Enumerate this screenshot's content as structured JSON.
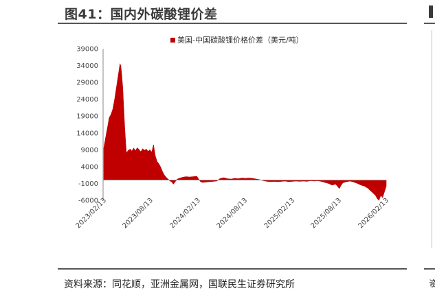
{
  "header": {
    "title": "图41：国内外碳酸锂价差"
  },
  "footer": {
    "source": "资料来源：同花顺，亚洲金属网，国联民生证券研究所"
  },
  "colors": {
    "series": "#c00000",
    "rule": "#555555"
  },
  "chart_data": {
    "type": "area",
    "legend": {
      "position": "top-center"
    },
    "series": [
      {
        "name": "美国-中国碳酸锂价格价差（美元/吨）",
        "color": "#c00000",
        "points": [
          [
            "2023-02-13",
            9500
          ],
          [
            "2023-02-20",
            12500
          ],
          [
            "2023-02-27",
            15500
          ],
          [
            "2023-03-06",
            18500
          ],
          [
            "2023-03-13",
            19500
          ],
          [
            "2023-03-20",
            21000
          ],
          [
            "2023-03-27",
            24000
          ],
          [
            "2023-04-03",
            27500
          ],
          [
            "2023-04-10",
            31000
          ],
          [
            "2023-04-14",
            33000
          ],
          [
            "2023-04-17",
            34500
          ],
          [
            "2023-04-20",
            34000
          ],
          [
            "2023-04-24",
            31000
          ],
          [
            "2023-04-28",
            27000
          ],
          [
            "2023-05-01",
            22000
          ],
          [
            "2023-05-05",
            16000
          ],
          [
            "2023-05-09",
            11000
          ],
          [
            "2023-05-12",
            8000
          ],
          [
            "2023-05-19",
            8800
          ],
          [
            "2023-05-26",
            9200
          ],
          [
            "2023-06-02",
            8600
          ],
          [
            "2023-06-09",
            9500
          ],
          [
            "2023-06-16",
            8700
          ],
          [
            "2023-06-23",
            9600
          ],
          [
            "2023-06-30",
            9000
          ],
          [
            "2023-07-07",
            8400
          ],
          [
            "2023-07-14",
            9300
          ],
          [
            "2023-07-21",
            8800
          ],
          [
            "2023-07-28",
            9200
          ],
          [
            "2023-08-04",
            8500
          ],
          [
            "2023-08-11",
            9000
          ],
          [
            "2023-08-18",
            8300
          ],
          [
            "2023-08-25",
            10500
          ],
          [
            "2023-09-01",
            7200
          ],
          [
            "2023-09-08",
            5500
          ],
          [
            "2023-09-15",
            4800
          ],
          [
            "2023-09-22",
            3800
          ],
          [
            "2023-09-29",
            2500
          ],
          [
            "2023-10-06",
            1500
          ],
          [
            "2023-10-13",
            800
          ],
          [
            "2023-10-20",
            300
          ],
          [
            "2023-10-27",
            -200
          ],
          [
            "2023-11-03",
            -500
          ],
          [
            "2023-11-10",
            -1200
          ],
          [
            "2023-11-17",
            -500
          ],
          [
            "2023-11-24",
            200
          ],
          [
            "2023-12-01",
            500
          ],
          [
            "2023-12-15",
            800
          ],
          [
            "2023-12-29",
            1000
          ],
          [
            "2024-01-12",
            900
          ],
          [
            "2024-01-26",
            1000
          ],
          [
            "2024-02-09",
            1100
          ],
          [
            "2024-02-16",
            300
          ],
          [
            "2024-02-23",
            -400
          ],
          [
            "2024-03-01",
            -700
          ],
          [
            "2024-03-15",
            -600
          ],
          [
            "2024-03-29",
            -500
          ],
          [
            "2024-04-12",
            -400
          ],
          [
            "2024-04-26",
            -300
          ],
          [
            "2024-05-10",
            500
          ],
          [
            "2024-05-24",
            700
          ],
          [
            "2024-06-07",
            400
          ],
          [
            "2024-06-21",
            300
          ],
          [
            "2024-07-05",
            500
          ],
          [
            "2024-07-19",
            400
          ],
          [
            "2024-08-02",
            600
          ],
          [
            "2024-08-16",
            500
          ],
          [
            "2024-08-30",
            600
          ],
          [
            "2024-09-13",
            500
          ],
          [
            "2024-09-27",
            300
          ],
          [
            "2024-10-11",
            100
          ],
          [
            "2024-10-25",
            -200
          ],
          [
            "2024-11-08",
            -400
          ],
          [
            "2024-11-22",
            -500
          ],
          [
            "2024-12-06",
            -400
          ],
          [
            "2024-12-20",
            -500
          ],
          [
            "2025-01-03",
            -400
          ],
          [
            "2025-01-17",
            -300
          ],
          [
            "2025-01-31",
            -500
          ],
          [
            "2025-02-14",
            -400
          ],
          [
            "2025-02-28",
            -300
          ],
          [
            "2025-03-14",
            -400
          ],
          [
            "2025-03-28",
            -300
          ],
          [
            "2025-04-11",
            -400
          ],
          [
            "2025-04-25",
            -200
          ],
          [
            "2025-05-09",
            -300
          ],
          [
            "2025-05-23",
            -200
          ],
          [
            "2025-06-06",
            -400
          ],
          [
            "2025-06-20",
            -700
          ],
          [
            "2025-07-04",
            -1000
          ],
          [
            "2025-07-18",
            -1500
          ],
          [
            "2025-08-01",
            -1200
          ],
          [
            "2025-08-15",
            -2500
          ],
          [
            "2025-08-22",
            -1500
          ],
          [
            "2025-08-29",
            -800
          ],
          [
            "2025-09-12",
            -500
          ],
          [
            "2025-09-26",
            -300
          ],
          [
            "2025-10-10",
            -600
          ],
          [
            "2025-10-24",
            -1000
          ],
          [
            "2025-11-07",
            -1500
          ],
          [
            "2025-11-21",
            -1800
          ],
          [
            "2025-12-05",
            -2500
          ],
          [
            "2025-12-19",
            -3500
          ],
          [
            "2026-01-02",
            -4500
          ],
          [
            "2026-01-09",
            -5500
          ],
          [
            "2026-01-16",
            -6000
          ],
          [
            "2026-01-23",
            -4500
          ],
          [
            "2026-01-30",
            -5200
          ],
          [
            "2026-02-06",
            -3500
          ],
          [
            "2026-02-13",
            -1800
          ]
        ]
      }
    ],
    "x_ticks": [
      "2023/02/13",
      "2023/08/13",
      "2024/02/13",
      "2024/08/13",
      "2025/02/13",
      "2025/08/13",
      "2026/02/13"
    ],
    "y_ticks": [
      39000,
      34000,
      29000,
      24000,
      19000,
      14000,
      9000,
      4000,
      -1000,
      -6000
    ],
    "ylim": [
      -6000,
      39000
    ],
    "xlim": [
      "2023-02-13",
      "2026-02-13"
    ],
    "grid": false
  }
}
